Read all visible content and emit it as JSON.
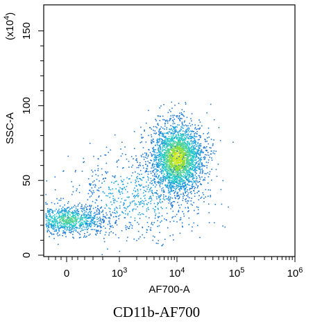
{
  "chart_data": {
    "type": "scatter",
    "subtype": "flow-cytometry-density-dot-plot",
    "xlabel": "AF700-A",
    "ylabel": "SSC-A",
    "y_multiplier_label": "(x10",
    "y_multiplier_exponent": "4",
    "y_multiplier_close": ")",
    "x_scale": "biexponential",
    "y_scale": "linear",
    "ylim": [
      0,
      160
    ],
    "xlim_log10": [
      -0.4,
      6.0
    ],
    "x_ticks": [
      {
        "value": 0,
        "base": "0",
        "exp": ""
      },
      {
        "value": 1000,
        "base": "10",
        "exp": "3"
      },
      {
        "value": 10000,
        "base": "10",
        "exp": "4"
      },
      {
        "value": 100000,
        "base": "10",
        "exp": "5"
      },
      {
        "value": 1000000,
        "base": "10",
        "exp": "6"
      }
    ],
    "y_ticks": [
      {
        "value": 0,
        "label": "0"
      },
      {
        "value": 50,
        "label": "50"
      },
      {
        "value": 100,
        "label": "100"
      },
      {
        "value": 150,
        "label": "150"
      }
    ],
    "density_colors": [
      "#1e78d2",
      "#1ea0dc",
      "#28c8c8",
      "#50d296",
      "#8cdc3c",
      "#c8e61e"
    ],
    "populations": [
      {
        "name": "",
        "center_x": 0,
        "center_y": 24,
        "spread_x": 0.35,
        "spread_y": 5,
        "density": "medium"
      },
      {
        "name": "",
        "center_x": 10000,
        "center_y": 65,
        "spread_x": 0.22,
        "spread_y": 12,
        "density": "high"
      },
      {
        "name": "",
        "center_x": 2000,
        "center_y": 40,
        "spread_x": 0.6,
        "spread_y": 15,
        "density": "sparse"
      }
    ],
    "grid": false,
    "legend": "none"
  },
  "caption": "CD11b-AF700"
}
